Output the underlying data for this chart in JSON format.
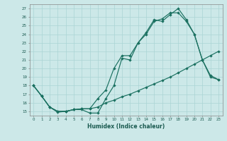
{
  "xlabel": "Humidex (Indice chaleur)",
  "bg_color": "#cce8e8",
  "grid_color": "#aad4d4",
  "line_color": "#1a7060",
  "xlim": [
    -0.5,
    23.5
  ],
  "ylim": [
    14.5,
    27.5
  ],
  "yticks": [
    15,
    16,
    17,
    18,
    19,
    20,
    21,
    22,
    23,
    24,
    25,
    26,
    27
  ],
  "xticks": [
    0,
    1,
    2,
    3,
    4,
    5,
    6,
    7,
    8,
    9,
    10,
    11,
    12,
    13,
    14,
    15,
    16,
    17,
    18,
    19,
    20,
    21,
    22,
    23
  ],
  "s1x": [
    0,
    1,
    2,
    3,
    4,
    5,
    6,
    7,
    8,
    9,
    10,
    11,
    12,
    13,
    14,
    15,
    16,
    17,
    18,
    19,
    20,
    21,
    22,
    23
  ],
  "s1y": [
    18.0,
    16.8,
    15.5,
    14.9,
    15.0,
    15.2,
    15.2,
    14.8,
    14.8,
    16.5,
    18.0,
    21.2,
    21.0,
    23.0,
    24.2,
    25.7,
    25.5,
    26.3,
    27.0,
    25.7,
    24.0,
    21.0,
    19.2,
    18.7
  ],
  "s2x": [
    0,
    1,
    2,
    3,
    4,
    5,
    6,
    7,
    8,
    9,
    10,
    11,
    12,
    13,
    14,
    15,
    16,
    17,
    18,
    19,
    20,
    21,
    22,
    23
  ],
  "s2y": [
    18.0,
    16.8,
    15.5,
    15.0,
    15.0,
    15.2,
    15.3,
    15.3,
    16.5,
    17.5,
    20.0,
    21.5,
    21.5,
    23.0,
    24.0,
    25.5,
    25.8,
    26.5,
    26.5,
    25.5,
    24.0,
    21.0,
    19.0,
    18.7
  ],
  "s3x": [
    0,
    1,
    2,
    3,
    4,
    5,
    6,
    7,
    8,
    9,
    10,
    11,
    12,
    13,
    14,
    15,
    16,
    17,
    18,
    19,
    20,
    21,
    22,
    23
  ],
  "s3y": [
    18.0,
    16.8,
    15.5,
    15.0,
    15.0,
    15.2,
    15.3,
    15.3,
    15.5,
    16.0,
    16.3,
    16.7,
    17.0,
    17.4,
    17.8,
    18.2,
    18.6,
    19.0,
    19.5,
    20.0,
    20.5,
    21.0,
    21.5,
    22.0
  ]
}
